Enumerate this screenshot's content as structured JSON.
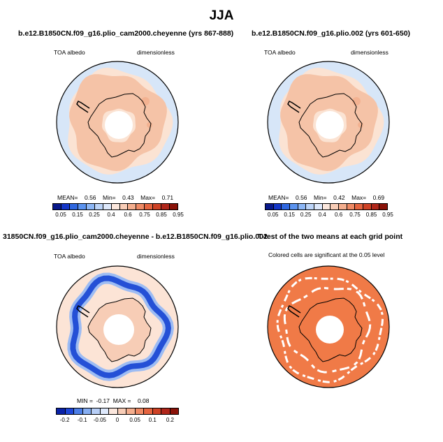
{
  "title": "JJA",
  "panels": [
    {
      "title": "b.e12.B1850CN.f09_g16.plio_cam2000.cheyenne (yrs 867-888)",
      "left_label": "TOA albedo",
      "right_label": "dimensionless",
      "stats": {
        "mean_label": "MEAN=",
        "mean": "0.56",
        "min_label": "Min=",
        "min": "0.43",
        "max_label": "Max=",
        "max": "0.71"
      }
    },
    {
      "title": "b.e12.B1850CN.f09_g16.plio.002 (yrs 601-650)",
      "left_label": "TOA albedo",
      "right_label": "dimensionless",
      "stats": {
        "mean_label": "MEAN=",
        "mean": "0.56",
        "min_label": "Min=",
        "min": "0.42",
        "max_label": "Max=",
        "max": "0.69"
      }
    },
    {
      "title": "31850CN.f09_g16.plio_cam2000.cheyenne - b.e12.B1850CN.f09_g16.plio.002",
      "left_label": "TOA albedo",
      "right_label": "dimensionless",
      "stats": {
        "min_label": "MIN =",
        "min": "-0.17",
        "max_label": "MAX =",
        "max": "0.08"
      }
    },
    {
      "title": "T-test of the two means at each grid point",
      "subtitle": "Colored cells are significant at the 0.05 level"
    }
  ],
  "colorbars": {
    "abs": {
      "ticks": [
        "0.05",
        "0.15",
        "0.25",
        "0.4",
        "0.6",
        "0.75",
        "0.85",
        "0.95"
      ],
      "colors": [
        "#08188a",
        "#1436c8",
        "#2f67e0",
        "#5b93ef",
        "#8cb6f5",
        "#bcd4f8",
        "#dde8fb",
        "#fbe7dd",
        "#f8cdb7",
        "#f4ae8e",
        "#ef8a65",
        "#e5643f",
        "#cf4225",
        "#b0261a",
        "#8a1208"
      ]
    },
    "diff": {
      "ticks": [
        "-0.2",
        "-0.1",
        "-0.05",
        "0",
        "0.05",
        "0.1",
        "0.2"
      ],
      "colors": [
        "#0a22a8",
        "#1f47d8",
        "#4d7fe8",
        "#86aef2",
        "#b7cef6",
        "#dde8fb",
        "#fbe7dd",
        "#f8cdb7",
        "#f4ae8e",
        "#ef8a65",
        "#e5643f",
        "#cf4225",
        "#b0261a",
        "#8a1208"
      ]
    }
  },
  "map_colors": {
    "ocean": "#d7e6f8",
    "pack": "#fbe3d3",
    "ice": "#f5c3a7",
    "dome": "#f3b291",
    "hole": "#ffffff",
    "diff_base": "#fce4d6",
    "diff_land": "#f7cdb6",
    "diff_band": "#2450d6",
    "diff_band_halo": "#9dbcf3",
    "ttest_fill": "#f07a47",
    "ttest_gap": "#ffffff"
  }
}
